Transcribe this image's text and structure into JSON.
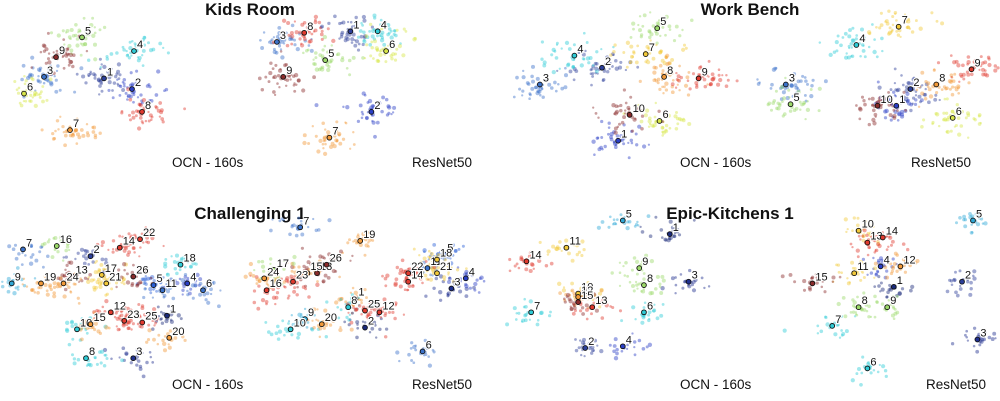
{
  "chart_data": [
    {
      "type": "scatter",
      "title": "Kids Room",
      "plots": [
        {
          "caption": "OCN - 160s",
          "clusters": [
            {
              "label": "1",
              "x": 43,
              "y": 55,
              "color": "#2c3f9a"
            },
            {
              "label": "2",
              "x": 57,
              "y": 48,
              "color": "#2a3fc6"
            },
            {
              "label": "3",
              "x": 13,
              "y": 56,
              "color": "#3b72c9"
            },
            {
              "label": "4",
              "x": 58,
              "y": 73,
              "color": "#2fcbd6"
            },
            {
              "label": "5",
              "x": 32,
              "y": 82,
              "color": "#9cd96a"
            },
            {
              "label": "6",
              "x": 3,
              "y": 45,
              "color": "#d8e64a"
            },
            {
              "label": "7",
              "x": 26,
              "y": 21,
              "color": "#f29a3a"
            },
            {
              "label": "8",
              "x": 62,
              "y": 33,
              "color": "#e03a2e"
            },
            {
              "label": "9",
              "x": 19,
              "y": 69,
              "color": "#8a2b2b"
            }
          ]
        },
        {
          "caption": "ResNet50",
          "clusters": [
            {
              "label": "1",
              "x": 44,
              "y": 86,
              "color": "#2c3f9a"
            },
            {
              "label": "2",
              "x": 54,
              "y": 33,
              "color": "#2a3fc6"
            },
            {
              "label": "3",
              "x": 9,
              "y": 79,
              "color": "#3b72c9"
            },
            {
              "label": "4",
              "x": 57,
              "y": 86,
              "color": "#2fcbd6"
            },
            {
              "label": "5",
              "x": 32,
              "y": 67,
              "color": "#9cd96a"
            },
            {
              "label": "6",
              "x": 61,
              "y": 73,
              "color": "#d8e64a"
            },
            {
              "label": "7",
              "x": 34,
              "y": 16,
              "color": "#f29a3a"
            },
            {
              "label": "8",
              "x": 22,
              "y": 85,
              "color": "#e03a2e"
            },
            {
              "label": "9",
              "x": 12,
              "y": 56,
              "color": "#8a2b2b"
            }
          ]
        }
      ]
    },
    {
      "type": "scatter",
      "title": "Work Bench",
      "plots": [
        {
          "caption": "OCN - 160s",
          "clusters": [
            {
              "label": "1",
              "x": 47,
              "y": 14,
              "color": "#2a3fc6"
            },
            {
              "label": "2",
              "x": 40,
              "y": 62,
              "color": "#2c3f9a"
            },
            {
              "label": "3",
              "x": 13,
              "y": 51,
              "color": "#3b72c9"
            },
            {
              "label": "4",
              "x": 28,
              "y": 70,
              "color": "#2fcbd6"
            },
            {
              "label": "5",
              "x": 64,
              "y": 88,
              "color": "#9cd96a"
            },
            {
              "label": "6",
              "x": 65,
              "y": 27,
              "color": "#d8e64a"
            },
            {
              "label": "7",
              "x": 59,
              "y": 71,
              "color": "#f2c93a"
            },
            {
              "label": "8",
              "x": 67,
              "y": 56,
              "color": "#f29a3a"
            },
            {
              "label": "9",
              "x": 82,
              "y": 55,
              "color": "#e03a2e"
            },
            {
              "label": "10",
              "x": 52,
              "y": 31,
              "color": "#8a2b2b"
            }
          ]
        },
        {
          "caption": "ResNet50",
          "clusters": [
            {
              "label": "1",
              "x": 58,
              "y": 37,
              "color": "#2a3fc6"
            },
            {
              "label": "2",
              "x": 64,
              "y": 48,
              "color": "#2c3f9a"
            },
            {
              "label": "3",
              "x": 11,
              "y": 51,
              "color": "#3b72c9"
            },
            {
              "label": "4",
              "x": 41,
              "y": 77,
              "color": "#2fcbd6"
            },
            {
              "label": "5",
              "x": 13,
              "y": 38,
              "color": "#9cd96a"
            },
            {
              "label": "6",
              "x": 82,
              "y": 29,
              "color": "#d8e64a"
            },
            {
              "label": "7",
              "x": 59,
              "y": 89,
              "color": "#f2c93a"
            },
            {
              "label": "8",
              "x": 75,
              "y": 51,
              "color": "#f29a3a"
            },
            {
              "label": "9",
              "x": 90,
              "y": 61,
              "color": "#e03a2e"
            },
            {
              "label": "10",
              "x": 50,
              "y": 37,
              "color": "#8a2b2b"
            }
          ]
        }
      ]
    },
    {
      "type": "scatter",
      "title": "Challenging 1",
      "plots": [
        {
          "caption": "OCN - 160s",
          "clusters": [
            {
              "label": "1",
              "x": 72,
              "y": 39,
              "color": "#1a2a7a"
            },
            {
              "label": "2",
              "x": 38,
              "y": 74,
              "color": "#2c3f9a"
            },
            {
              "label": "3",
              "x": 57,
              "y": 14,
              "color": "#1f2f8f"
            },
            {
              "label": "4",
              "x": 81,
              "y": 58,
              "color": "#2a3fc6"
            },
            {
              "label": "5",
              "x": 66,
              "y": 57,
              "color": "#2a5fd6"
            },
            {
              "label": "6",
              "x": 88,
              "y": 54,
              "color": "#3b72c9"
            },
            {
              "label": "7",
              "x": 8,
              "y": 78,
              "color": "#3b72c9"
            },
            {
              "label": "8",
              "x": 36,
              "y": 14,
              "color": "#2fcbd6"
            },
            {
              "label": "9",
              "x": 3,
              "y": 58,
              "color": "#2fa8d6"
            },
            {
              "label": "10",
              "x": 32,
              "y": 31,
              "color": "#2fcbd6"
            },
            {
              "label": "11",
              "x": 70,
              "y": 54,
              "color": "#3b72c9"
            },
            {
              "label": "12",
              "x": 47,
              "y": 41,
              "color": "#e03a2e"
            },
            {
              "label": "13",
              "x": 30,
              "y": 62,
              "color": "#8a2b2b"
            },
            {
              "label": "14",
              "x": 51,
              "y": 79,
              "color": "#e03a2e"
            },
            {
              "label": "15",
              "x": 38,
              "y": 34,
              "color": "#f29a3a"
            },
            {
              "label": "16",
              "x": 23,
              "y": 80,
              "color": "#9cd96a"
            },
            {
              "label": "17",
              "x": 43,
              "y": 63,
              "color": "#f2c93a"
            },
            {
              "label": "18",
              "x": 78,
              "y": 69,
              "color": "#2fcbd6"
            },
            {
              "label": "19",
              "x": 16,
              "y": 58,
              "color": "#f29a3a"
            },
            {
              "label": "20",
              "x": 73,
              "y": 26,
              "color": "#f29a3a"
            },
            {
              "label": "21",
              "x": 45,
              "y": 58,
              "color": "#f2c93a"
            },
            {
              "label": "22",
              "x": 60,
              "y": 84,
              "color": "#e03a2e"
            },
            {
              "label": "23",
              "x": 53,
              "y": 36,
              "color": "#e03a2e"
            },
            {
              "label": "24",
              "x": 26,
              "y": 58,
              "color": "#f29a3a"
            },
            {
              "label": "25",
              "x": 61,
              "y": 35,
              "color": "#e03a2e"
            },
            {
              "label": "26",
              "x": 57,
              "y": 62,
              "color": "#8a2b2b"
            }
          ]
        },
        {
          "caption": "ResNet50",
          "clusters": [
            {
              "label": "1",
              "x": 46,
              "y": 49,
              "color": "#f29a3a"
            },
            {
              "label": "2",
              "x": 50,
              "y": 32,
              "color": "#1a2a7a"
            },
            {
              "label": "3",
              "x": 86,
              "y": 55,
              "color": "#1f2f8f"
            },
            {
              "label": "4",
              "x": 92,
              "y": 61,
              "color": "#2a3fc6"
            },
            {
              "label": "5",
              "x": 83,
              "y": 75,
              "color": "#2a5fd6"
            },
            {
              "label": "6",
              "x": 74,
              "y": 18,
              "color": "#3b72c9"
            },
            {
              "label": "7",
              "x": 23,
              "y": 91,
              "color": "#3b72c9"
            },
            {
              "label": "8",
              "x": 43,
              "y": 44,
              "color": "#2fcbd6"
            },
            {
              "label": "9",
              "x": 25,
              "y": 37,
              "color": "#2fa8d6"
            },
            {
              "label": "10",
              "x": 19,
              "y": 31,
              "color": "#2fcbd6"
            },
            {
              "label": "11",
              "x": 76,
              "y": 67,
              "color": "#3b72c9"
            },
            {
              "label": "12",
              "x": 56,
              "y": 41,
              "color": "#e03a2e"
            },
            {
              "label": "13",
              "x": 30,
              "y": 64,
              "color": "#8a2b2b"
            },
            {
              "label": "14",
              "x": 68,
              "y": 59,
              "color": "#e03a2e"
            },
            {
              "label": "15",
              "x": 26,
              "y": 64,
              "color": "#f29a3a"
            },
            {
              "label": "16",
              "x": 9,
              "y": 54,
              "color": "#e03a2e"
            },
            {
              "label": "17",
              "x": 12,
              "y": 66,
              "color": "#9cd96a"
            },
            {
              "label": "18",
              "x": 80,
              "y": 72,
              "color": "#f2c93a"
            },
            {
              "label": "19",
              "x": 48,
              "y": 83,
              "color": "#f29a3a"
            },
            {
              "label": "20",
              "x": 32,
              "y": 34,
              "color": "#f29a3a"
            },
            {
              "label": "21",
              "x": 80,
              "y": 64,
              "color": "#f2c93a"
            },
            {
              "label": "22",
              "x": 68,
              "y": 64,
              "color": "#e03a2e"
            },
            {
              "label": "23",
              "x": 20,
              "y": 59,
              "color": "#e03a2e"
            },
            {
              "label": "24",
              "x": 8,
              "y": 61,
              "color": "#f29a3a"
            },
            {
              "label": "25",
              "x": 50,
              "y": 42,
              "color": "#e03a2e"
            },
            {
              "label": "26",
              "x": 34,
              "y": 69,
              "color": "#8a2b2b"
            }
          ]
        }
      ]
    },
    {
      "type": "scatter",
      "title": "Epic-Kitchens 1",
      "plots": [
        {
          "caption": "OCN - 160s",
          "clusters": [
            {
              "label": "1",
              "x": 68,
              "y": 87,
              "color": "#1a2a7a"
            },
            {
              "label": "2",
              "x": 32,
              "y": 20,
              "color": "#2c3f9a"
            },
            {
              "label": "3",
              "x": 76,
              "y": 59,
              "color": "#1f2f8f"
            },
            {
              "label": "4",
              "x": 48,
              "y": 21,
              "color": "#2a3fc6"
            },
            {
              "label": "5",
              "x": 48,
              "y": 95,
              "color": "#2fa8d6"
            },
            {
              "label": "6",
              "x": 57,
              "y": 41,
              "color": "#2fcbd6"
            },
            {
              "label": "7",
              "x": 9,
              "y": 41,
              "color": "#2fcbd6"
            },
            {
              "label": "8",
              "x": 57,
              "y": 57,
              "color": "#9cd96a"
            },
            {
              "label": "9",
              "x": 55,
              "y": 67,
              "color": "#9cd96a"
            },
            {
              "label": "10",
              "x": 29,
              "y": 52,
              "color": "#f2c93a"
            },
            {
              "label": "11",
              "x": 24,
              "y": 79,
              "color": "#f2c93a"
            },
            {
              "label": "12",
              "x": 29,
              "y": 50,
              "color": "#f29a3a"
            },
            {
              "label": "13",
              "x": 35,
              "y": 44,
              "color": "#e03a2e"
            },
            {
              "label": "14",
              "x": 7,
              "y": 71,
              "color": "#e03a2e"
            },
            {
              "label": "15",
              "x": 29,
              "y": 47,
              "color": "#8a2b2b"
            }
          ]
        },
        {
          "caption": "ResNet50",
          "clusters": [
            {
              "label": "1",
              "x": 54,
              "y": 56,
              "color": "#1a2a7a"
            },
            {
              "label": "2",
              "x": 85,
              "y": 59,
              "color": "#2c3f9a"
            },
            {
              "label": "3",
              "x": 92,
              "y": 25,
              "color": "#1f2f8f"
            },
            {
              "label": "4",
              "x": 48,
              "y": 68,
              "color": "#2a3fc6"
            },
            {
              "label": "5",
              "x": 90,
              "y": 95,
              "color": "#2fa8d6"
            },
            {
              "label": "6",
              "x": 42,
              "y": 8,
              "color": "#2fcbd6"
            },
            {
              "label": "7",
              "x": 26,
              "y": 33,
              "color": "#2fcbd6"
            },
            {
              "label": "8",
              "x": 38,
              "y": 44,
              "color": "#9cd96a"
            },
            {
              "label": "9",
              "x": 51,
              "y": 44,
              "color": "#9cd96a"
            },
            {
              "label": "10",
              "x": 38,
              "y": 89,
              "color": "#f2c93a"
            },
            {
              "label": "11",
              "x": 36,
              "y": 64,
              "color": "#f2c93a"
            },
            {
              "label": "12",
              "x": 57,
              "y": 68,
              "color": "#f29a3a"
            },
            {
              "label": "13",
              "x": 42,
              "y": 82,
              "color": "#e03a2e"
            },
            {
              "label": "14",
              "x": 49,
              "y": 85,
              "color": "#e03a2e"
            },
            {
              "label": "15",
              "x": 17,
              "y": 58,
              "color": "#8a2b2b"
            }
          ]
        }
      ]
    }
  ]
}
